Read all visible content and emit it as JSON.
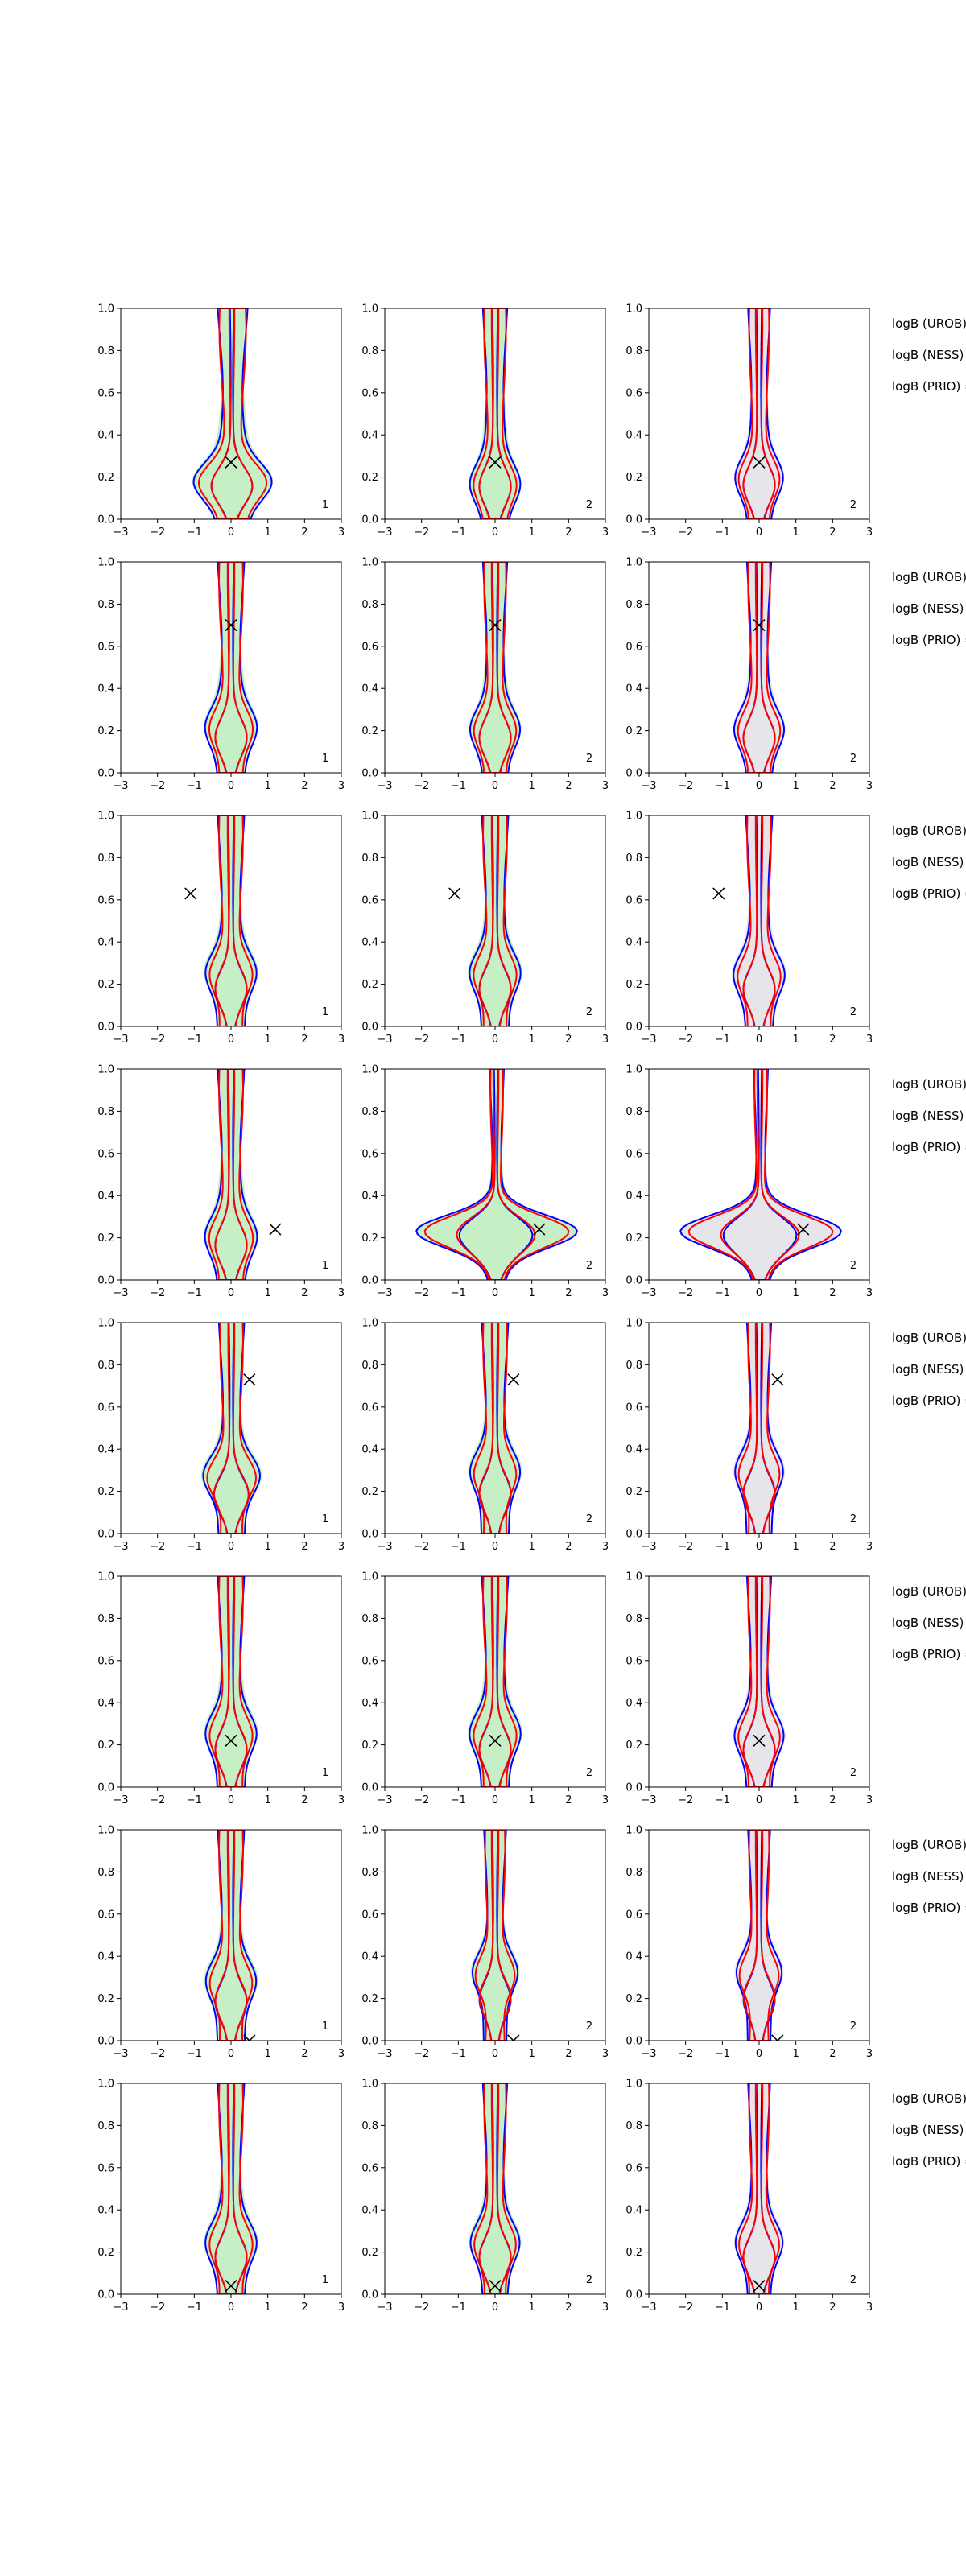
{
  "chart_data": {
    "type": "contour-grid",
    "title": "",
    "xlabel": "",
    "ylabel": "",
    "xlim": [
      -3,
      3
    ],
    "ylim": [
      0,
      1
    ],
    "xticks": [
      "−3",
      "−2",
      "−1",
      "0",
      "1",
      "2",
      "3"
    ],
    "yticks": [
      "0.0",
      "0.2",
      "0.4",
      "0.6",
      "0.8",
      "1.0"
    ],
    "colors": {
      "blue": "#0000ff",
      "red": "#ff0000",
      "green_fill": "#c6efc6",
      "grey_fill": "#e6e6ea",
      "marker": "#000000"
    },
    "side_labels": [
      "logB (UROB) =",
      "logB (NESS) =",
      "logB (PRIO) ="
    ],
    "columns": [
      {
        "label": "1",
        "fill": "green"
      },
      {
        "label": "2",
        "fill": "green"
      },
      {
        "label": "2",
        "fill": "grey"
      }
    ],
    "rows": [
      {
        "marker": [
          0.0,
          0.27
        ],
        "spread": [
          0.75,
          0.55,
          0.5
        ],
        "bulge": [
          0.15,
          0.1,
          0.25
        ],
        "shift": [
          0.3,
          0.0,
          0.0
        ],
        "flare": [
          0.0,
          0.0,
          0.0
        ]
      },
      {
        "marker": [
          0.0,
          0.7
        ],
        "spread": [
          0.6,
          0.55,
          0.55
        ],
        "bulge": [
          0.35,
          0.3,
          0.3
        ],
        "shift": [
          0.0,
          0.0,
          0.0
        ],
        "flare": [
          0.0,
          0.0,
          0.0
        ]
      },
      {
        "marker": [
          -1.1,
          0.63
        ],
        "spread": [
          0.6,
          0.6,
          0.6
        ],
        "bulge": [
          0.55,
          0.55,
          0.5
        ],
        "shift": [
          0.0,
          0.0,
          0.0
        ],
        "flare": [
          0.0,
          0.0,
          0.0
        ]
      },
      {
        "marker": [
          1.2,
          0.24
        ],
        "spread": [
          0.6,
          0.4,
          0.4
        ],
        "bulge": [
          0.3,
          0.25,
          0.25
        ],
        "shift": [
          0.0,
          0.3,
          0.3
        ],
        "flare": [
          0.0,
          1.4,
          1.4
        ]
      },
      {
        "marker": [
          0.5,
          0.73
        ],
        "spread": [
          0.6,
          0.6,
          0.55
        ],
        "bulge": [
          0.65,
          0.75,
          0.75
        ],
        "shift": [
          0.1,
          0.0,
          0.0
        ],
        "flare": [
          0.0,
          0.0,
          0.0
        ]
      },
      {
        "marker": [
          0.0,
          0.22
        ],
        "spread": [
          0.6,
          0.6,
          0.55
        ],
        "bulge": [
          0.55,
          0.55,
          0.5
        ],
        "shift": [
          0.0,
          0.0,
          0.0
        ],
        "flare": [
          0.0,
          0.0,
          0.0
        ]
      },
      {
        "marker": [
          0.5,
          0.0
        ],
        "spread": [
          0.6,
          0.5,
          0.5
        ],
        "bulge": [
          0.7,
          0.9,
          0.9
        ],
        "shift": [
          0.0,
          0.0,
          0.0
        ],
        "flare": [
          0.0,
          0.0,
          0.0
        ]
      },
      {
        "marker": [
          0.0,
          0.04
        ],
        "spread": [
          0.6,
          0.55,
          0.5
        ],
        "bulge": [
          0.5,
          0.5,
          0.5
        ],
        "shift": [
          0.0,
          0.0,
          0.0
        ],
        "flare": [
          0.0,
          0.0,
          0.0
        ]
      }
    ]
  }
}
